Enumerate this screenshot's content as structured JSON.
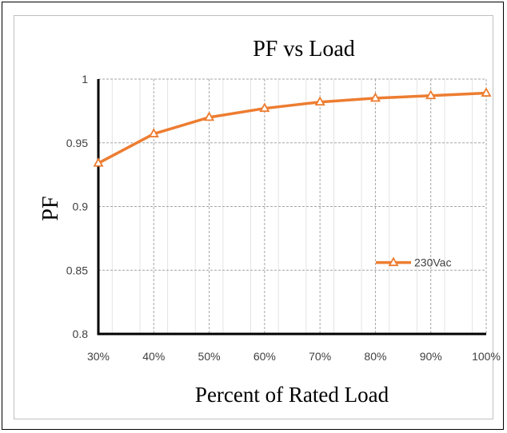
{
  "chart_data": {
    "type": "line",
    "title": "PF vs Load",
    "xlabel": "Percent of Rated Load",
    "ylabel": "PF",
    "categories": [
      "30%",
      "40%",
      "50%",
      "60%",
      "70%",
      "80%",
      "90%",
      "100%"
    ],
    "y_ticks": [
      "0.8",
      "0.85",
      "0.9",
      "0.95",
      "1"
    ],
    "ylim": [
      0.8,
      1.0
    ],
    "grid": true,
    "legend_position": "right-middle",
    "series": [
      {
        "name": "230Vac",
        "values": [
          0.934,
          0.957,
          0.97,
          0.977,
          0.982,
          0.985,
          0.987,
          0.989
        ],
        "color": "#ed7d31",
        "marker": "triangle-open"
      }
    ]
  }
}
